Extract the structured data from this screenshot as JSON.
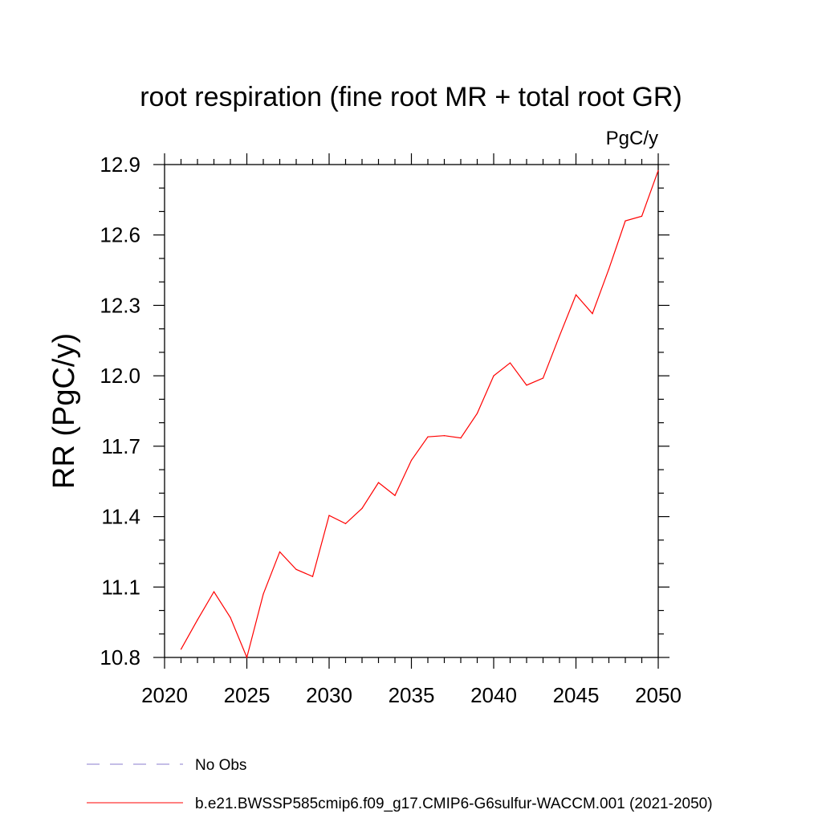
{
  "chart_data": {
    "type": "line",
    "title": "root respiration (fine root MR + total root GR)",
    "units_label": "PgC/y",
    "ylabel": "RR  (PgC/y)",
    "xlabel": "",
    "xlim": [
      2020,
      2050
    ],
    "ylim": [
      10.8,
      12.9
    ],
    "x_ticks": [
      "2020",
      "2025",
      "2030",
      "2035",
      "2040",
      "2045",
      "2050"
    ],
    "y_ticks": [
      "10.8",
      "11.1",
      "11.4",
      "11.7",
      "12.0",
      "12.3",
      "12.6",
      "12.9"
    ],
    "grid": false,
    "legend_position": "bottom",
    "series": [
      {
        "name": "b.e21.BWSSP585cmip6.f09_g17.CMIP6-G6sulfur-WACCM.001 (2021-2050)",
        "color": "#ff0000",
        "style": "solid",
        "x": [
          2021,
          2022,
          2023,
          2024,
          2025,
          2026,
          2027,
          2028,
          2029,
          2030,
          2031,
          2032,
          2033,
          2034,
          2035,
          2036,
          2037,
          2038,
          2039,
          2040,
          2041,
          2042,
          2043,
          2044,
          2045,
          2046,
          2047,
          2048,
          2049,
          2050
        ],
        "values": [
          10.835,
          10.96,
          11.08,
          10.97,
          10.8,
          11.07,
          11.25,
          11.175,
          11.145,
          11.405,
          11.37,
          11.435,
          11.545,
          11.49,
          11.64,
          11.74,
          11.745,
          11.735,
          11.84,
          12.0,
          12.055,
          11.96,
          11.99,
          12.17,
          12.345,
          12.265,
          12.455,
          12.66,
          12.68,
          12.875
        ]
      }
    ],
    "legend": [
      {
        "label": "No Obs",
        "color": "#8a7ccf",
        "style": "dashed"
      },
      {
        "label": "b.e21.BWSSP585cmip6.f09_g17.CMIP6-G6sulfur-WACCM.001 (2021-2050)",
        "color": "#ff0000",
        "style": "solid"
      }
    ]
  }
}
